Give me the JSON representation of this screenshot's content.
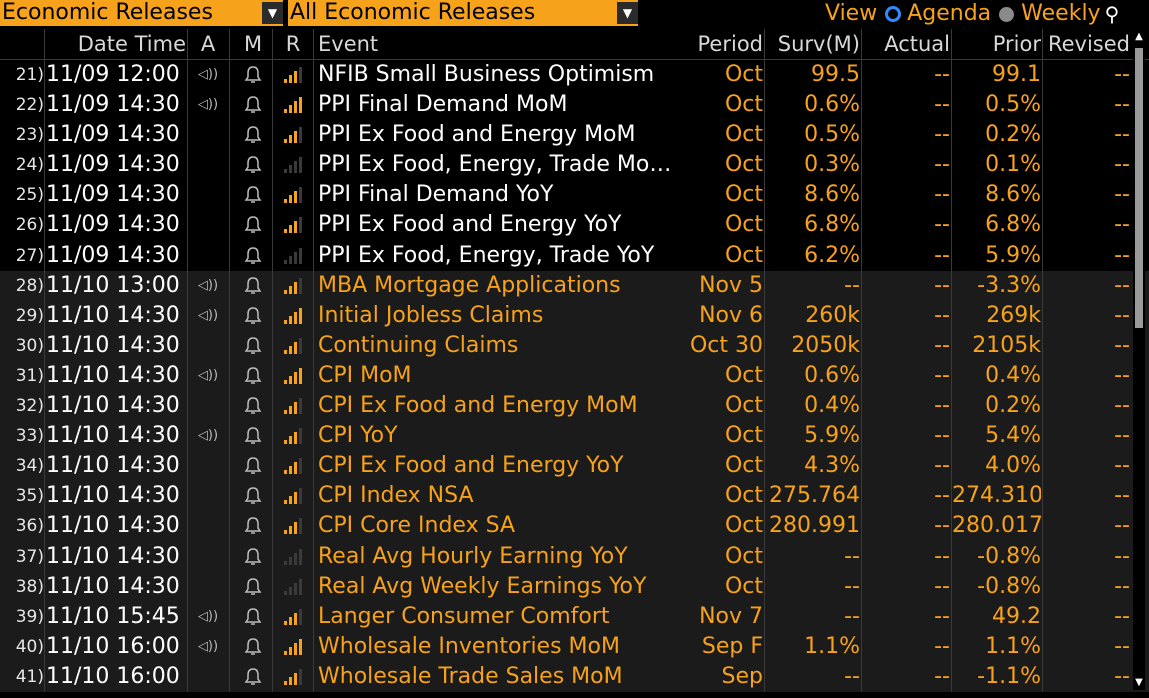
{
  "toolbar": {
    "dropdown1": "Economic Releases",
    "dropdown2": "All Economic Releases",
    "view_label": "View",
    "agenda_label": "Agenda",
    "weekly_label": "Weekly"
  },
  "columns": {
    "datetime": "Date Time",
    "a": "A",
    "m": "M",
    "r": "R",
    "event": "Event",
    "period": "Period",
    "surv": "Surv(M)",
    "actual": "Actual",
    "prior": "Prior",
    "revised": "Revised"
  },
  "colors": {
    "accent": "#f7a21b",
    "background": "#000000",
    "alt_row": "#1b1b1b",
    "radio": "#2f8bff"
  },
  "rows": [
    {
      "num": "21)",
      "dt": "11/09 12:00",
      "audio": true,
      "rel": 3,
      "event": "NFIB Small Business Optimism",
      "period": "Oct",
      "surv": "99.5",
      "actual": "--",
      "prior": "99.1",
      "revised": "--",
      "group": 1
    },
    {
      "num": "22)",
      "dt": "11/09 14:30",
      "audio": true,
      "rel": 4,
      "event": "PPI Final Demand MoM",
      "period": "Oct",
      "surv": "0.6%",
      "actual": "--",
      "prior": "0.5%",
      "revised": "--",
      "group": 1
    },
    {
      "num": "23)",
      "dt": "11/09 14:30",
      "audio": false,
      "rel": 3,
      "event": "PPI Ex Food and Energy MoM",
      "period": "Oct",
      "surv": "0.5%",
      "actual": "--",
      "prior": "0.2%",
      "revised": "--",
      "group": 1
    },
    {
      "num": "24)",
      "dt": "11/09 14:30",
      "audio": false,
      "rel": 0,
      "event": "PPI Ex Food, Energy, Trade Mo…",
      "period": "Oct",
      "surv": "0.3%",
      "actual": "--",
      "prior": "0.1%",
      "revised": "--",
      "group": 1
    },
    {
      "num": "25)",
      "dt": "11/09 14:30",
      "audio": false,
      "rel": 3,
      "event": "PPI Final Demand YoY",
      "period": "Oct",
      "surv": "8.6%",
      "actual": "--",
      "prior": "8.6%",
      "revised": "--",
      "group": 1
    },
    {
      "num": "26)",
      "dt": "11/09 14:30",
      "audio": false,
      "rel": 3,
      "event": "PPI Ex Food and Energy YoY",
      "period": "Oct",
      "surv": "6.8%",
      "actual": "--",
      "prior": "6.8%",
      "revised": "--",
      "group": 1
    },
    {
      "num": "27)",
      "dt": "11/09 14:30",
      "audio": false,
      "rel": 0,
      "event": "PPI Ex Food, Energy, Trade YoY",
      "period": "Oct",
      "surv": "6.2%",
      "actual": "--",
      "prior": "5.9%",
      "revised": "--",
      "group": 1
    },
    {
      "num": "28)",
      "dt": "11/10 13:00",
      "audio": true,
      "rel": 3,
      "event": "MBA Mortgage Applications",
      "period": "Nov 5",
      "surv": "--",
      "actual": "--",
      "prior": "-3.3%",
      "revised": "--",
      "group": 2
    },
    {
      "num": "29)",
      "dt": "11/10 14:30",
      "audio": true,
      "rel": 4,
      "event": "Initial Jobless Claims",
      "period": "Nov 6",
      "surv": "260k",
      "actual": "--",
      "prior": "269k",
      "revised": "--",
      "group": 2
    },
    {
      "num": "30)",
      "dt": "11/10 14:30",
      "audio": false,
      "rel": 3,
      "event": "Continuing Claims",
      "period": "Oct 30",
      "surv": "2050k",
      "actual": "--",
      "prior": "2105k",
      "revised": "--",
      "group": 2
    },
    {
      "num": "31)",
      "dt": "11/10 14:30",
      "audio": true,
      "rel": 4,
      "event": "CPI MoM",
      "period": "Oct",
      "surv": "0.6%",
      "actual": "--",
      "prior": "0.4%",
      "revised": "--",
      "group": 2
    },
    {
      "num": "32)",
      "dt": "11/10 14:30",
      "audio": false,
      "rel": 3,
      "event": "CPI Ex Food and Energy MoM",
      "period": "Oct",
      "surv": "0.4%",
      "actual": "--",
      "prior": "0.2%",
      "revised": "--",
      "group": 2
    },
    {
      "num": "33)",
      "dt": "11/10 14:30",
      "audio": true,
      "rel": 3,
      "event": "CPI YoY",
      "period": "Oct",
      "surv": "5.9%",
      "actual": "--",
      "prior": "5.4%",
      "revised": "--",
      "group": 2
    },
    {
      "num": "34)",
      "dt": "11/10 14:30",
      "audio": false,
      "rel": 3,
      "event": "CPI Ex Food and Energy YoY",
      "period": "Oct",
      "surv": "4.3%",
      "actual": "--",
      "prior": "4.0%",
      "revised": "--",
      "group": 2
    },
    {
      "num": "35)",
      "dt": "11/10 14:30",
      "audio": false,
      "rel": 3,
      "event": "CPI Index NSA",
      "period": "Oct",
      "surv": "275.764",
      "actual": "--",
      "prior": "274.310",
      "revised": "--",
      "group": 2
    },
    {
      "num": "36)",
      "dt": "11/10 14:30",
      "audio": false,
      "rel": 3,
      "event": "CPI Core Index SA",
      "period": "Oct",
      "surv": "280.991",
      "actual": "--",
      "prior": "280.017",
      "revised": "--",
      "group": 2
    },
    {
      "num": "37)",
      "dt": "11/10 14:30",
      "audio": false,
      "rel": 0,
      "event": "Real Avg Hourly Earning YoY",
      "period": "Oct",
      "surv": "--",
      "actual": "--",
      "prior": "-0.8%",
      "revised": "--",
      "group": 2
    },
    {
      "num": "38)",
      "dt": "11/10 14:30",
      "audio": false,
      "rel": 0,
      "event": "Real Avg Weekly Earnings YoY",
      "period": "Oct",
      "surv": "--",
      "actual": "--",
      "prior": "-0.8%",
      "revised": "--",
      "group": 2
    },
    {
      "num": "39)",
      "dt": "11/10 15:45",
      "audio": true,
      "rel": 3,
      "event": "Langer Consumer Comfort",
      "period": "Nov 7",
      "surv": "--",
      "actual": "--",
      "prior": "49.2",
      "revised": "--",
      "group": 2
    },
    {
      "num": "40)",
      "dt": "11/10 16:00",
      "audio": true,
      "rel": 4,
      "event": "Wholesale Inventories MoM",
      "period": "Sep F",
      "surv": "1.1%",
      "actual": "--",
      "prior": "1.1%",
      "revised": "--",
      "group": 2
    },
    {
      "num": "41)",
      "dt": "11/10 16:00",
      "audio": false,
      "rel": 3,
      "event": "Wholesale Trade Sales MoM",
      "period": "Sep",
      "surv": "--",
      "actual": "--",
      "prior": "-1.1%",
      "revised": "--",
      "group": 2
    }
  ]
}
